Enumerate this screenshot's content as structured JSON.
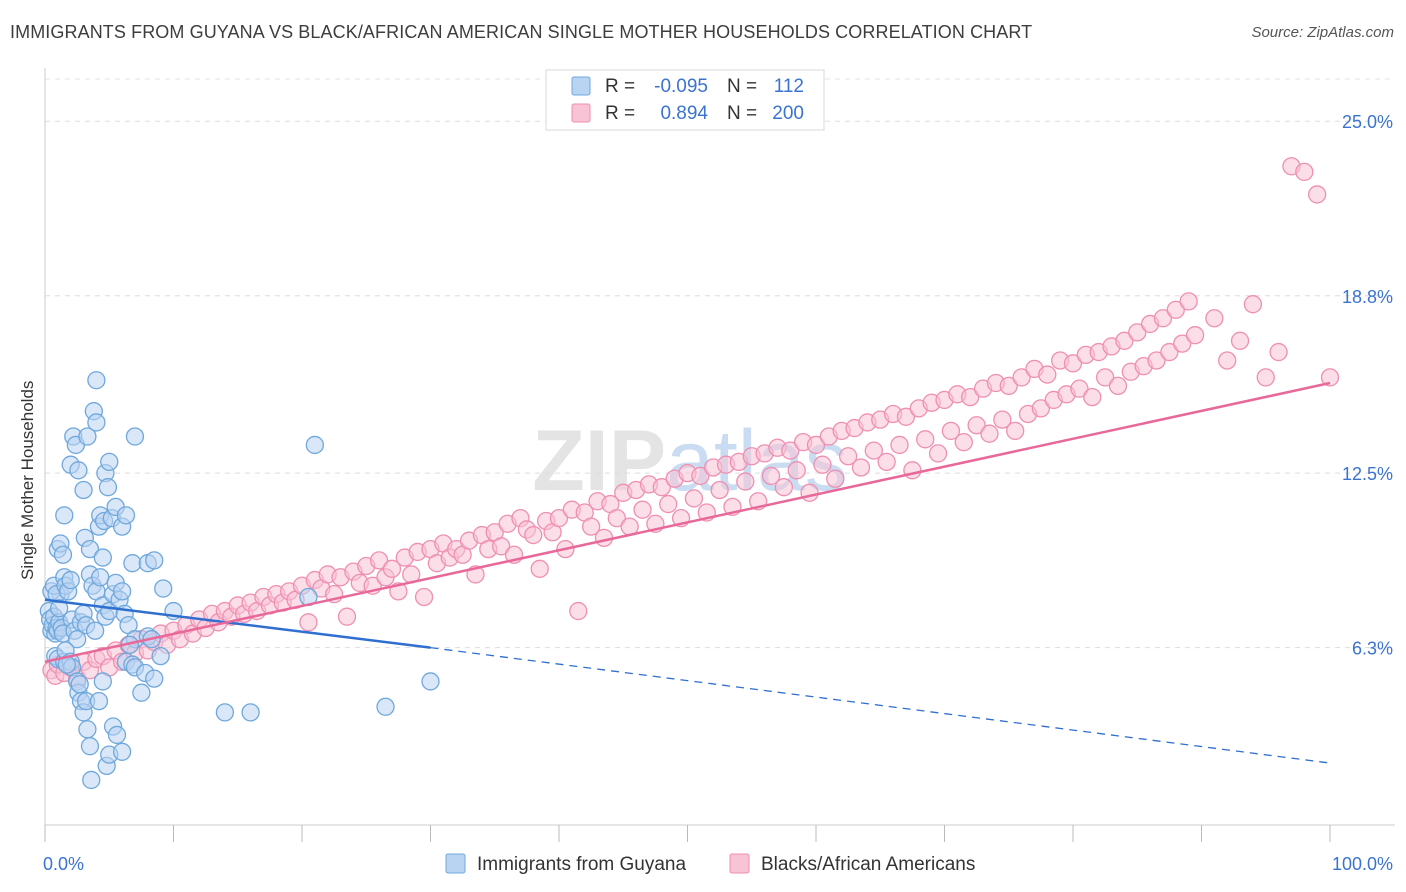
{
  "title": "IMMIGRANTS FROM GUYANA VS BLACK/AFRICAN AMERICAN SINGLE MOTHER HOUSEHOLDS CORRELATION CHART",
  "source": "Source: ZipAtlas.com",
  "watermark": "ZIPatlas",
  "colors": {
    "blue": "#6fa8dc",
    "blue_fill": "#b9d3f2",
    "blue_line": "#2f6fd0",
    "pink": "#ef8fb1",
    "pink_fill": "#f8c3d5",
    "pink_line": "#e8689a",
    "axis_text": "#3b73d1",
    "grid": "#dddddd"
  },
  "legend": {
    "rows": [
      {
        "r_label": "R =",
        "r_value": "-0.095",
        "n_label": "N =",
        "n_value": "112"
      },
      {
        "r_label": "R =",
        "r_value": "0.894",
        "n_label": "N =",
        "n_value": "200"
      }
    ]
  },
  "bottom_legend": [
    "Immigrants from Guyana",
    "Blacks/African Americans"
  ],
  "chart_data": {
    "type": "scatter",
    "title": "IMMIGRANTS FROM GUYANA VS BLACK/AFRICAN AMERICAN SINGLE MOTHER HOUSEHOLDS CORRELATION CHART",
    "xlabel": "",
    "ylabel": "Single Mother Households",
    "xlim": [
      0,
      100
    ],
    "ylim": [
      0,
      26.5
    ],
    "x_tick_labels": [
      "0.0%",
      "100.0%"
    ],
    "y_ticks": [
      6.3,
      12.5,
      18.8,
      25.0
    ],
    "y_tick_labels": [
      "6.3%",
      "12.5%",
      "18.8%",
      "25.0%"
    ],
    "grid": true,
    "legend_position": "top-center",
    "series": [
      {
        "name": "Immigrants from Guyana",
        "r": -0.095,
        "n": 112,
        "trend": {
          "x0": 0,
          "y0": 8.0,
          "x1": 30,
          "y1": 6.3,
          "dashed_to_x": 100,
          "dashed_to_y": 2.2
        },
        "points": [
          [
            0.3,
            7.6
          ],
          [
            0.4,
            7.3
          ],
          [
            0.5,
            6.9
          ],
          [
            0.6,
            7.1
          ],
          [
            0.7,
            7.4
          ],
          [
            0.8,
            6.8
          ],
          [
            0.9,
            7.0
          ],
          [
            1.0,
            6.9
          ],
          [
            1.1,
            7.2
          ],
          [
            1.2,
            8.2
          ],
          [
            0.5,
            8.3
          ],
          [
            0.7,
            8.5
          ],
          [
            0.9,
            8.2
          ],
          [
            1.1,
            7.7
          ],
          [
            1.3,
            7.0
          ],
          [
            1.4,
            6.8
          ],
          [
            1.5,
            8.8
          ],
          [
            1.6,
            8.5
          ],
          [
            1.8,
            8.3
          ],
          [
            2.0,
            8.7
          ],
          [
            2.1,
            7.3
          ],
          [
            2.3,
            6.9
          ],
          [
            2.5,
            6.6
          ],
          [
            2.8,
            7.2
          ],
          [
            3.0,
            7.5
          ],
          [
            3.2,
            7.1
          ],
          [
            3.5,
            8.9
          ],
          [
            3.7,
            8.5
          ],
          [
            4.0,
            8.3
          ],
          [
            4.3,
            8.8
          ],
          [
            4.5,
            7.8
          ],
          [
            4.7,
            7.4
          ],
          [
            5.0,
            7.6
          ],
          [
            5.3,
            8.2
          ],
          [
            5.5,
            8.6
          ],
          [
            5.8,
            8.0
          ],
          [
            6.0,
            8.3
          ],
          [
            6.2,
            7.5
          ],
          [
            6.5,
            7.1
          ],
          [
            7.0,
            6.6
          ],
          [
            1.0,
            9.8
          ],
          [
            1.2,
            10.0
          ],
          [
            1.4,
            9.6
          ],
          [
            1.5,
            11.0
          ],
          [
            2.0,
            12.8
          ],
          [
            2.2,
            13.8
          ],
          [
            2.4,
            13.5
          ],
          [
            2.6,
            12.6
          ],
          [
            3.0,
            11.9
          ],
          [
            3.3,
            13.8
          ],
          [
            3.1,
            10.2
          ],
          [
            3.5,
            9.8
          ],
          [
            3.8,
            14.7
          ],
          [
            4.0,
            14.3
          ],
          [
            4.2,
            10.6
          ],
          [
            4.5,
            9.5
          ],
          [
            4.7,
            12.5
          ],
          [
            4.9,
            12.0
          ],
          [
            4.0,
            15.8
          ],
          [
            5.0,
            12.9
          ],
          [
            4.3,
            11.0
          ],
          [
            4.6,
            10.8
          ],
          [
            5.2,
            10.9
          ],
          [
            5.5,
            11.3
          ],
          [
            6.0,
            10.6
          ],
          [
            6.3,
            11.0
          ],
          [
            6.8,
            9.3
          ],
          [
            7.0,
            13.8
          ],
          [
            8.0,
            9.3
          ],
          [
            8.5,
            9.4
          ],
          [
            0.8,
            6.0
          ],
          [
            1.0,
            5.9
          ],
          [
            1.5,
            5.8
          ],
          [
            1.6,
            6.2
          ],
          [
            2.0,
            5.8
          ],
          [
            2.1,
            5.6
          ],
          [
            2.5,
            5.1
          ],
          [
            2.6,
            4.7
          ],
          [
            2.8,
            4.4
          ],
          [
            3.0,
            4.0
          ],
          [
            3.2,
            4.4
          ],
          [
            3.3,
            3.4
          ],
          [
            3.5,
            2.8
          ],
          [
            3.6,
            1.6
          ],
          [
            4.2,
            4.4
          ],
          [
            4.5,
            5.1
          ],
          [
            4.8,
            2.1
          ],
          [
            5.0,
            2.5
          ],
          [
            5.3,
            3.5
          ],
          [
            5.6,
            3.2
          ],
          [
            6.0,
            2.6
          ],
          [
            6.3,
            5.8
          ],
          [
            6.6,
            6.4
          ],
          [
            6.8,
            5.7
          ],
          [
            7.0,
            5.6
          ],
          [
            7.5,
            4.7
          ],
          [
            7.8,
            5.4
          ],
          [
            8.0,
            6.7
          ],
          [
            8.3,
            6.6
          ],
          [
            8.5,
            5.2
          ],
          [
            9.0,
            6.0
          ],
          [
            9.2,
            8.4
          ],
          [
            10.0,
            7.6
          ],
          [
            14.0,
            4.0
          ],
          [
            16.0,
            4.0
          ],
          [
            20.5,
            8.1
          ],
          [
            21.0,
            13.5
          ],
          [
            26.5,
            4.2
          ],
          [
            30.0,
            5.1
          ],
          [
            2.7,
            5.0
          ],
          [
            1.7,
            5.7
          ],
          [
            3.9,
            6.9
          ]
        ]
      },
      {
        "name": "Blacks/African Americans",
        "r": 0.894,
        "n": 200,
        "trend": {
          "x0": 0,
          "y0": 5.8,
          "x1": 100,
          "y1": 15.7
        },
        "points": [
          [
            0.5,
            5.5
          ],
          [
            0.8,
            5.3
          ],
          [
            1.0,
            5.7
          ],
          [
            1.5,
            5.4
          ],
          [
            2.0,
            5.6
          ],
          [
            2.5,
            5.2
          ],
          [
            3.0,
            5.8
          ],
          [
            3.5,
            5.5
          ],
          [
            4.0,
            5.9
          ],
          [
            4.5,
            6.0
          ],
          [
            5.0,
            5.6
          ],
          [
            5.5,
            6.2
          ],
          [
            6.0,
            5.8
          ],
          [
            6.5,
            6.4
          ],
          [
            7.0,
            6.1
          ],
          [
            7.5,
            6.6
          ],
          [
            8.0,
            6.2
          ],
          [
            8.5,
            6.5
          ],
          [
            9.0,
            6.8
          ],
          [
            9.5,
            6.4
          ],
          [
            10.0,
            6.9
          ],
          [
            10.5,
            6.6
          ],
          [
            11.0,
            7.1
          ],
          [
            11.5,
            6.8
          ],
          [
            12.0,
            7.3
          ],
          [
            12.5,
            7.0
          ],
          [
            13.0,
            7.5
          ],
          [
            13.5,
            7.2
          ],
          [
            14.0,
            7.6
          ],
          [
            14.5,
            7.4
          ],
          [
            15.0,
            7.8
          ],
          [
            15.5,
            7.5
          ],
          [
            16.0,
            7.9
          ],
          [
            16.5,
            7.6
          ],
          [
            17.0,
            8.1
          ],
          [
            17.5,
            7.8
          ],
          [
            18.0,
            8.2
          ],
          [
            18.5,
            7.9
          ],
          [
            19.0,
            8.3
          ],
          [
            19.5,
            8.0
          ],
          [
            20.0,
            8.5
          ],
          [
            20.5,
            7.2
          ],
          [
            21.0,
            8.7
          ],
          [
            21.5,
            8.4
          ],
          [
            22.0,
            8.9
          ],
          [
            22.5,
            8.2
          ],
          [
            23.0,
            8.8
          ],
          [
            23.5,
            7.4
          ],
          [
            24.0,
            9.0
          ],
          [
            24.5,
            8.6
          ],
          [
            25.0,
            9.2
          ],
          [
            25.5,
            8.5
          ],
          [
            26.0,
            9.4
          ],
          [
            26.5,
            8.8
          ],
          [
            27.0,
            9.1
          ],
          [
            27.5,
            8.3
          ],
          [
            28.0,
            9.5
          ],
          [
            28.5,
            8.9
          ],
          [
            29.0,
            9.7
          ],
          [
            29.5,
            8.1
          ],
          [
            30.0,
            9.8
          ],
          [
            30.5,
            9.3
          ],
          [
            31.0,
            10.0
          ],
          [
            31.5,
            9.5
          ],
          [
            32.0,
            9.8
          ],
          [
            32.5,
            9.6
          ],
          [
            33.0,
            10.1
          ],
          [
            33.5,
            8.9
          ],
          [
            34.0,
            10.3
          ],
          [
            34.5,
            9.8
          ],
          [
            35.0,
            10.4
          ],
          [
            35.5,
            9.9
          ],
          [
            36.0,
            10.7
          ],
          [
            36.5,
            9.6
          ],
          [
            37.0,
            10.9
          ],
          [
            37.5,
            10.5
          ],
          [
            38.0,
            10.3
          ],
          [
            38.5,
            9.1
          ],
          [
            39.0,
            10.8
          ],
          [
            39.5,
            10.4
          ],
          [
            40.0,
            10.9
          ],
          [
            40.5,
            9.8
          ],
          [
            41.0,
            11.2
          ],
          [
            41.5,
            7.6
          ],
          [
            42.0,
            11.1
          ],
          [
            42.5,
            10.6
          ],
          [
            43.0,
            11.5
          ],
          [
            43.5,
            10.2
          ],
          [
            44.0,
            11.4
          ],
          [
            44.5,
            10.9
          ],
          [
            45.0,
            11.8
          ],
          [
            45.5,
            10.6
          ],
          [
            46.0,
            11.9
          ],
          [
            46.5,
            11.2
          ],
          [
            47.0,
            12.1
          ],
          [
            47.5,
            10.7
          ],
          [
            48.0,
            12.0
          ],
          [
            48.5,
            11.4
          ],
          [
            49.0,
            12.3
          ],
          [
            49.5,
            10.9
          ],
          [
            50.0,
            12.5
          ],
          [
            50.5,
            11.6
          ],
          [
            51.0,
            12.4
          ],
          [
            51.5,
            11.1
          ],
          [
            52.0,
            12.7
          ],
          [
            52.5,
            11.9
          ],
          [
            53.0,
            12.8
          ],
          [
            53.5,
            11.3
          ],
          [
            54.0,
            12.9
          ],
          [
            54.5,
            12.2
          ],
          [
            55.0,
            13.1
          ],
          [
            55.5,
            11.5
          ],
          [
            56.0,
            13.2
          ],
          [
            56.5,
            12.4
          ],
          [
            57.0,
            13.4
          ],
          [
            57.5,
            12.0
          ],
          [
            58.0,
            13.3
          ],
          [
            58.5,
            12.6
          ],
          [
            59.0,
            13.6
          ],
          [
            59.5,
            11.8
          ],
          [
            60.0,
            13.5
          ],
          [
            60.5,
            12.8
          ],
          [
            61.0,
            13.8
          ],
          [
            61.5,
            12.3
          ],
          [
            62.0,
            14.0
          ],
          [
            62.5,
            13.1
          ],
          [
            63.0,
            14.1
          ],
          [
            63.5,
            12.7
          ],
          [
            64.0,
            14.3
          ],
          [
            64.5,
            13.3
          ],
          [
            65.0,
            14.4
          ],
          [
            65.5,
            12.9
          ],
          [
            66.0,
            14.6
          ],
          [
            66.5,
            13.5
          ],
          [
            67.0,
            14.5
          ],
          [
            67.5,
            12.6
          ],
          [
            68.0,
            14.8
          ],
          [
            68.5,
            13.7
          ],
          [
            69.0,
            15.0
          ],
          [
            69.5,
            13.2
          ],
          [
            70.0,
            15.1
          ],
          [
            70.5,
            14.0
          ],
          [
            71.0,
            15.3
          ],
          [
            71.5,
            13.6
          ],
          [
            72.0,
            15.2
          ],
          [
            72.5,
            14.2
          ],
          [
            73.0,
            15.5
          ],
          [
            73.5,
            13.9
          ],
          [
            74.0,
            15.7
          ],
          [
            74.5,
            14.4
          ],
          [
            75.0,
            15.6
          ],
          [
            75.5,
            14.0
          ],
          [
            76.0,
            15.9
          ],
          [
            76.5,
            14.6
          ],
          [
            77.0,
            16.2
          ],
          [
            77.5,
            14.8
          ],
          [
            78.0,
            16.0
          ],
          [
            78.5,
            15.1
          ],
          [
            79.0,
            16.5
          ],
          [
            79.5,
            15.3
          ],
          [
            80.0,
            16.4
          ],
          [
            80.5,
            15.5
          ],
          [
            81.0,
            16.7
          ],
          [
            81.5,
            15.2
          ],
          [
            82.0,
            16.8
          ],
          [
            82.5,
            15.9
          ],
          [
            83.0,
            17.0
          ],
          [
            83.5,
            15.6
          ],
          [
            84.0,
            17.2
          ],
          [
            84.5,
            16.1
          ],
          [
            85.0,
            17.5
          ],
          [
            85.5,
            16.3
          ],
          [
            86.0,
            17.8
          ],
          [
            86.5,
            16.5
          ],
          [
            87.0,
            18.0
          ],
          [
            87.5,
            16.8
          ],
          [
            88.0,
            18.3
          ],
          [
            88.5,
            17.1
          ],
          [
            89.0,
            18.6
          ],
          [
            89.5,
            17.4
          ],
          [
            91.0,
            18.0
          ],
          [
            92.0,
            16.5
          ],
          [
            93.0,
            17.2
          ],
          [
            94.0,
            18.5
          ],
          [
            95.0,
            15.9
          ],
          [
            96.0,
            16.8
          ],
          [
            97.0,
            23.4
          ],
          [
            98.0,
            23.2
          ],
          [
            99.0,
            22.4
          ],
          [
            100.0,
            15.9
          ]
        ]
      }
    ]
  }
}
